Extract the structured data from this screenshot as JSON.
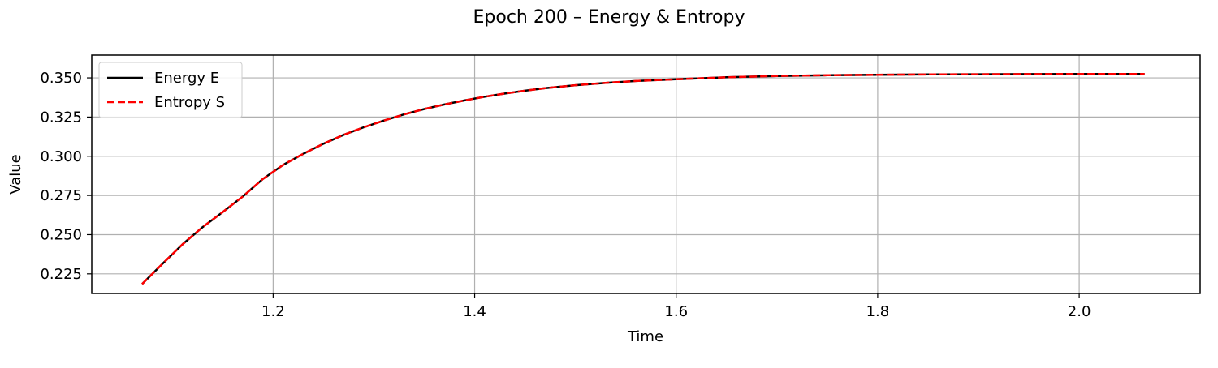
{
  "chart_data": {
    "type": "line",
    "title": "Epoch 200 – Energy & Entropy",
    "xlabel": "Time",
    "ylabel": "Value",
    "xlim": [
      1.02,
      2.12
    ],
    "ylim": [
      0.2125,
      0.3645
    ],
    "xticks": [
      1.2,
      1.4,
      1.6,
      1.8,
      2.0
    ],
    "xtick_labels": [
      "1.2",
      "1.4",
      "1.6",
      "1.8",
      "2.0"
    ],
    "yticks": [
      0.225,
      0.25,
      0.275,
      0.3,
      0.325,
      0.35
    ],
    "ytick_labels": [
      "0.225",
      "0.250",
      "0.275",
      "0.300",
      "0.325",
      "0.350"
    ],
    "grid": true,
    "legend_position": "upper-left",
    "x": [
      1.07,
      1.09,
      1.11,
      1.13,
      1.15,
      1.17,
      1.19,
      1.21,
      1.23,
      1.25,
      1.27,
      1.29,
      1.31,
      1.33,
      1.35,
      1.37,
      1.39,
      1.41,
      1.43,
      1.45,
      1.47,
      1.5,
      1.53,
      1.56,
      1.6,
      1.65,
      1.7,
      1.75,
      1.8,
      1.85,
      1.9,
      1.95,
      2.0,
      2.065
    ],
    "series": [
      {
        "name": "Energy E",
        "color": "#000000",
        "style": "solid",
        "values": [
          0.2185,
          0.2313,
          0.2438,
          0.2548,
          0.2644,
          0.2744,
          0.2856,
          0.2945,
          0.3016,
          0.308,
          0.3137,
          0.3185,
          0.3228,
          0.3267,
          0.3301,
          0.333,
          0.3356,
          0.338,
          0.34,
          0.3418,
          0.3434,
          0.3453,
          0.3468,
          0.348,
          0.3491,
          0.3504,
          0.3512,
          0.3517,
          0.352,
          0.3522,
          0.3523,
          0.3524,
          0.3525,
          0.3525
        ]
      },
      {
        "name": "Entropy S",
        "color": "#ff0000",
        "style": "dashed",
        "values": [
          0.2185,
          0.2313,
          0.2438,
          0.2548,
          0.2644,
          0.2744,
          0.2856,
          0.2945,
          0.3016,
          0.308,
          0.3137,
          0.3185,
          0.3228,
          0.3267,
          0.3301,
          0.333,
          0.3356,
          0.338,
          0.34,
          0.3418,
          0.3434,
          0.3453,
          0.3468,
          0.348,
          0.3491,
          0.3504,
          0.3512,
          0.3517,
          0.352,
          0.3522,
          0.3523,
          0.3524,
          0.3525,
          0.3525
        ]
      }
    ]
  }
}
